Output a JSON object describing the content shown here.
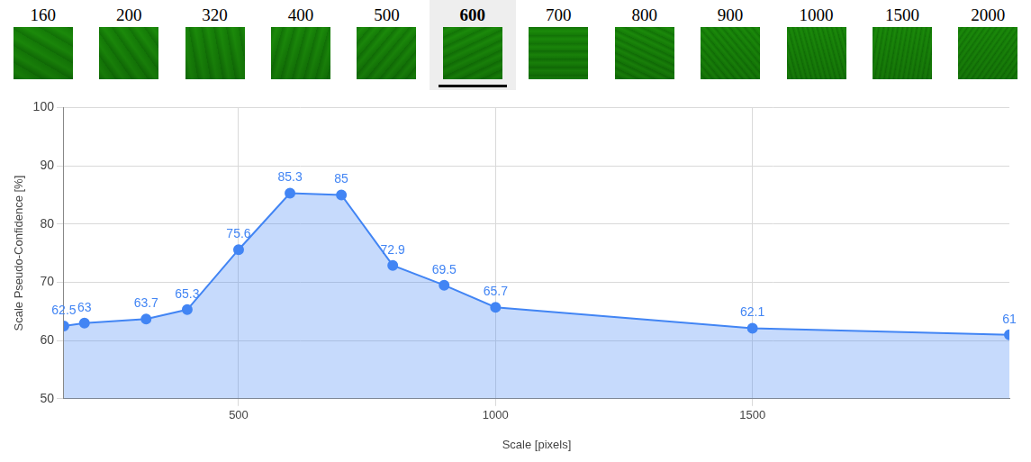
{
  "thumbnails": {
    "labels": [
      "160",
      "200",
      "320",
      "400",
      "500",
      "600",
      "700",
      "800",
      "900",
      "1000",
      "1500",
      "2000"
    ],
    "selected": "600"
  },
  "chart_data": {
    "type": "line",
    "x": [
      160,
      200,
      320,
      400,
      500,
      600,
      700,
      800,
      900,
      1000,
      1500,
      2000
    ],
    "values": [
      62.5,
      63,
      63.7,
      65.3,
      75.6,
      85.3,
      85,
      72.9,
      69.5,
      65.7,
      62.1,
      61
    ],
    "color": "#4285f4",
    "xlabel": "Scale [pixels]",
    "ylabel": "Scale Pseudo-Confidence [%]",
    "xlim": [
      160,
      2000
    ],
    "ylim": [
      50,
      100
    ],
    "xticks": [
      500,
      1000,
      1500
    ],
    "yticks": [
      50,
      60,
      70,
      80,
      90,
      100
    ],
    "grid": true,
    "data_labels": true,
    "marker": "circle"
  }
}
